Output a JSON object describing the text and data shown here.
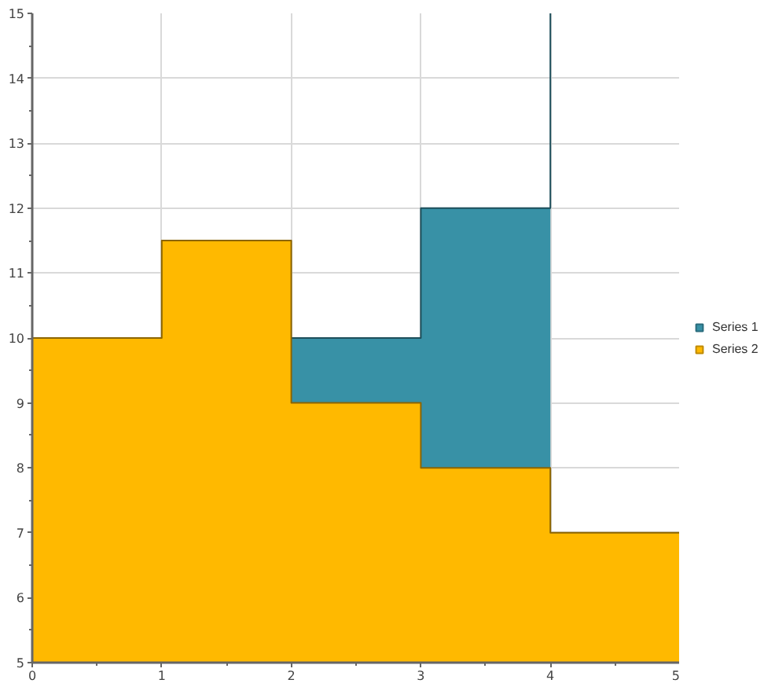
{
  "chart_data": {
    "type": "area",
    "xlim": [
      0,
      5
    ],
    "ylim": [
      5,
      15
    ],
    "xticks": [
      0,
      {
        "value": 0.5,
        "label": null
      },
      1,
      {
        "value": 1.5,
        "label": null
      },
      2,
      {
        "value": 2.5,
        "label": null
      },
      3,
      {
        "value": 3.5,
        "label": null
      },
      4,
      {
        "value": 4.5,
        "label": null
      },
      5
    ],
    "yticks": [
      5,
      {
        "value": 5.5,
        "label": null
      },
      6,
      {
        "value": 6.5,
        "label": null
      },
      7,
      {
        "value": 7.5,
        "label": null
      },
      8,
      {
        "value": 8.5,
        "label": null
      },
      9,
      {
        "value": 9.5,
        "label": null
      },
      10,
      {
        "value": 10.5,
        "label": null
      },
      11,
      {
        "value": 11.5,
        "label": null
      },
      12,
      {
        "value": 12.5,
        "label": null
      },
      13,
      {
        "value": 13.5,
        "label": null
      },
      14,
      {
        "value": 14.5,
        "label": null
      },
      15
    ],
    "grid": true,
    "legend": "right",
    "series": [
      {
        "name": "Series 1",
        "color": "#3891a6",
        "x": [
          2,
          3,
          3,
          4,
          4
        ],
        "values": [
          10,
          10,
          12,
          12,
          15
        ]
      },
      {
        "name": "Series 2",
        "color": "#ffb900",
        "x": [
          0,
          1,
          1,
          2,
          2,
          3,
          3,
          4,
          4,
          5
        ],
        "values": [
          10,
          10,
          11.5,
          11.5,
          9,
          9,
          8,
          8,
          7,
          7
        ]
      }
    ]
  }
}
